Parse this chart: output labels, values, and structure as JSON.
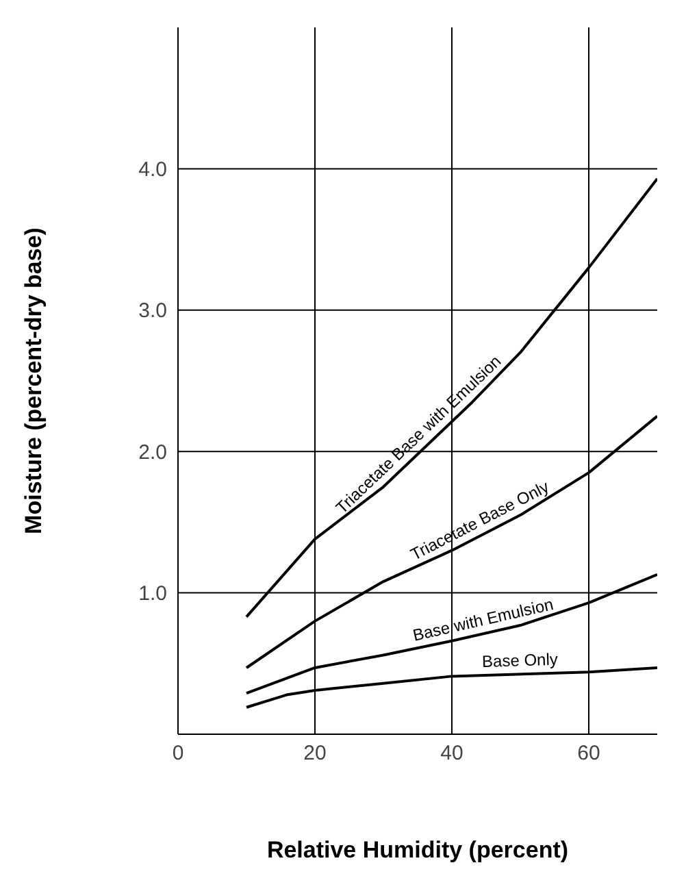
{
  "chart_data": {
    "type": "line",
    "xlabel": "Relative Humidity (percent)",
    "ylabel": "Moisture (percent-dry base)",
    "xlim": [
      0,
      70
    ],
    "ylim": [
      0,
      5
    ],
    "xticks": [
      0,
      20,
      40,
      60
    ],
    "yticks": [
      {
        "value": 1,
        "label": "1.0"
      },
      {
        "value": 2,
        "label": "2.0"
      },
      {
        "value": 3,
        "label": "3.0"
      },
      {
        "value": 4,
        "label": "4.0"
      }
    ],
    "grid": true,
    "marker": "none",
    "line_style": "solid",
    "series": [
      {
        "name": "Triacetate Base with Emulsion",
        "color": "#000000",
        "x": [
          10,
          20,
          30,
          43,
          50,
          60,
          70
        ],
        "values": [
          0.83,
          1.38,
          1.75,
          2.35,
          2.7,
          3.3,
          3.93
        ]
      },
      {
        "name": "Triacetate Base Only",
        "color": "#000000",
        "x": [
          10,
          20,
          30,
          40,
          50,
          60,
          70
        ],
        "values": [
          0.47,
          0.8,
          1.08,
          1.3,
          1.55,
          1.85,
          2.25
        ]
      },
      {
        "name": "Base with Emulsion",
        "color": "#000000",
        "x": [
          10,
          20,
          30,
          40,
          50,
          60,
          70
        ],
        "values": [
          0.29,
          0.47,
          0.56,
          0.66,
          0.77,
          0.93,
          1.13
        ]
      },
      {
        "name": "Base Only",
        "color": "#000000",
        "x": [
          10,
          16,
          20,
          30,
          40,
          60,
          70
        ],
        "values": [
          0.19,
          0.28,
          0.31,
          0.36,
          0.41,
          0.44,
          0.47
        ]
      }
    ]
  }
}
